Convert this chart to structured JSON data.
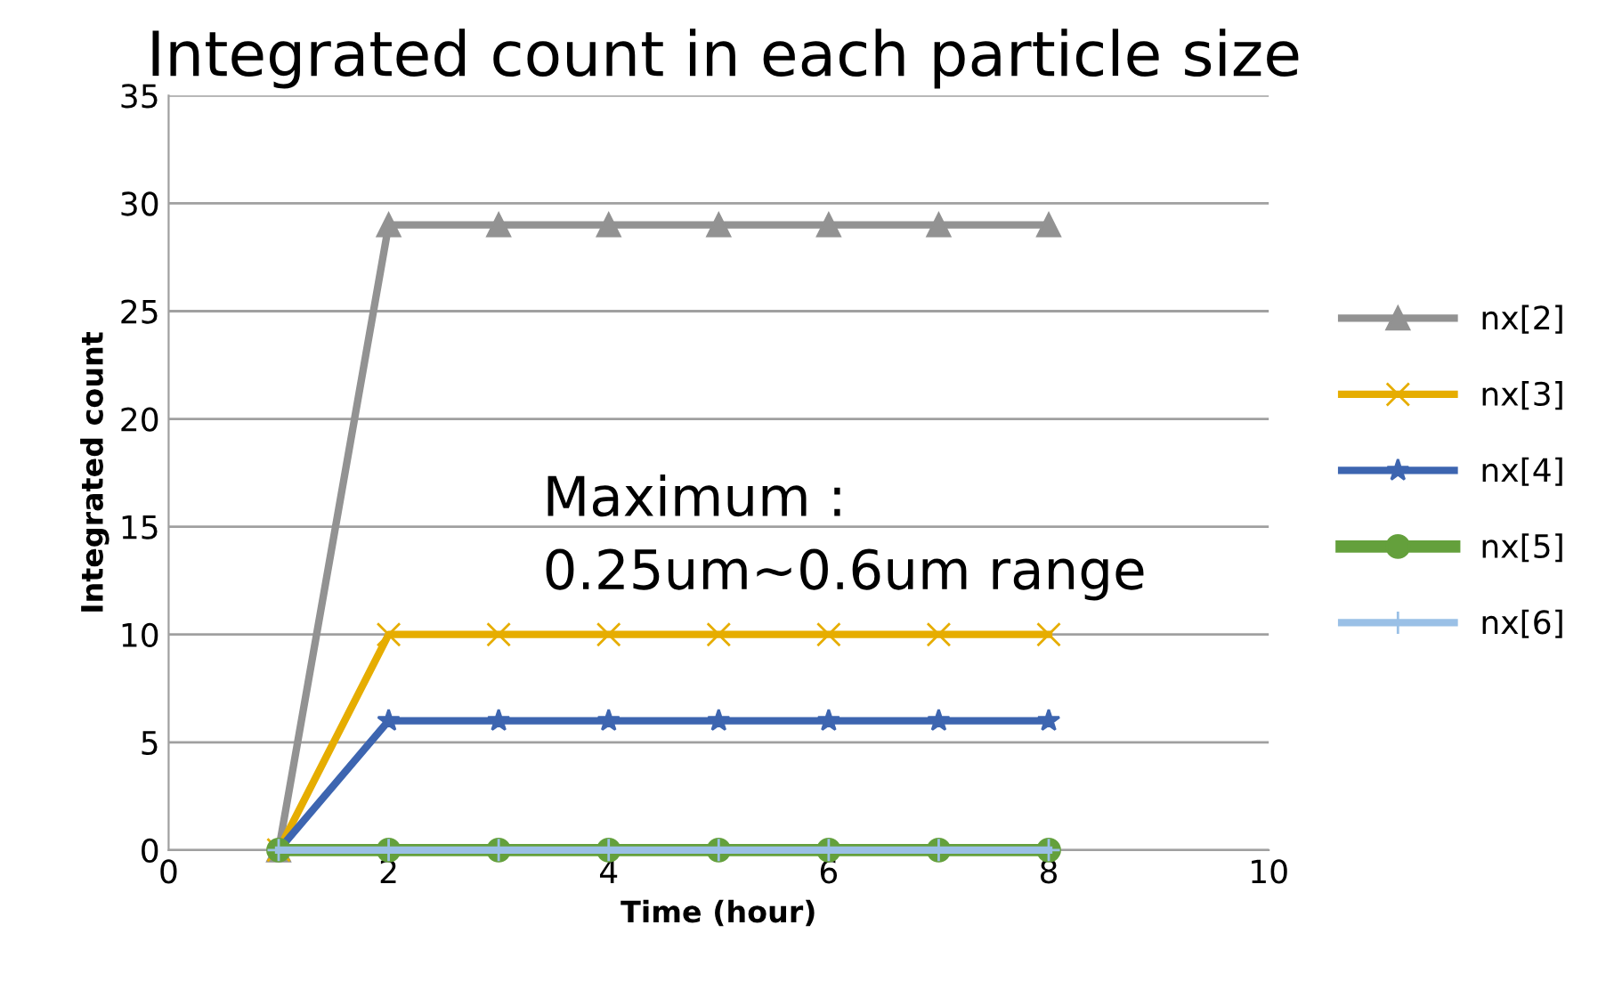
{
  "chart_data": {
    "type": "line",
    "title": "Integrated count in each particle size",
    "xlabel": "Time (hour)",
    "ylabel": "Integrated count",
    "annotations": [
      "Maximum :\n0.25um~0.6um range"
    ],
    "x": [
      1,
      2,
      3,
      4,
      5,
      6,
      7,
      8
    ],
    "series": [
      {
        "name": "nx[2]",
        "color": "#929292",
        "marker": "triangle",
        "values": [
          0,
          29,
          29,
          29,
          29,
          29,
          29,
          29
        ]
      },
      {
        "name": "nx[3]",
        "color": "#e6ad00",
        "marker": "cross",
        "values": [
          0,
          10,
          10,
          10,
          10,
          10,
          10,
          10
        ]
      },
      {
        "name": "nx[4]",
        "color": "#3d65b0",
        "marker": "star",
        "values": [
          0,
          6,
          6,
          6,
          6,
          6,
          6,
          6
        ]
      },
      {
        "name": "nx[5]",
        "color": "#64a03c",
        "marker": "circle",
        "values": [
          0,
          0,
          0,
          0,
          0,
          0,
          0,
          0
        ]
      },
      {
        "name": "nx[6]",
        "color": "#9ac0e6",
        "marker": "plus",
        "values": [
          0,
          0,
          0,
          0,
          0,
          0,
          0,
          0
        ]
      }
    ],
    "xlim": [
      0,
      10
    ],
    "xticks": [
      0,
      2,
      4,
      6,
      8,
      10
    ],
    "ylim": [
      0,
      35
    ],
    "yticks": [
      0,
      5,
      10,
      15,
      20,
      25,
      30,
      35
    ],
    "grid": "y",
    "legend": "right",
    "line_style": "solid"
  }
}
